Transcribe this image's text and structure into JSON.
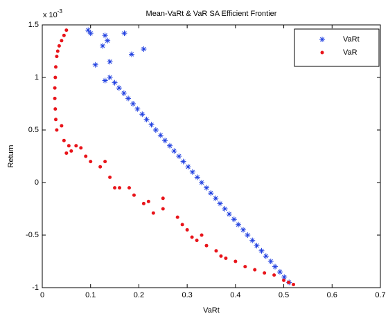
{
  "chart_data": {
    "type": "scatter",
    "title": "Mean-VaRt & VaR SA Efficient Frontier",
    "x_label": "VaRt",
    "y_label": "Return",
    "y_multiplier": {
      "base": "x 10",
      "exponent": "-3"
    },
    "xlim": [
      0,
      0.7
    ],
    "ylim": [
      -1,
      1.5
    ],
    "xticks": [
      0,
      0.1,
      0.2,
      0.3,
      0.4,
      0.5,
      0.6,
      0.7
    ],
    "yticks": [
      -1,
      -0.5,
      0,
      0.5,
      1,
      1.5
    ],
    "grid": false,
    "legend": "top-right",
    "series": [
      {
        "name": "VaRt",
        "color": "#1f3fe0",
        "marker": "star",
        "x": [
          0.095,
          0.1,
          0.13,
          0.135,
          0.125,
          0.17,
          0.185,
          0.21,
          0.11,
          0.14,
          0.13,
          0.14,
          0.15,
          0.159,
          0.169,
          0.178,
          0.188,
          0.197,
          0.207,
          0.216,
          0.226,
          0.235,
          0.245,
          0.254,
          0.264,
          0.273,
          0.283,
          0.292,
          0.302,
          0.311,
          0.321,
          0.33,
          0.34,
          0.349,
          0.359,
          0.368,
          0.378,
          0.387,
          0.397,
          0.406,
          0.416,
          0.425,
          0.435,
          0.444,
          0.454,
          0.463,
          0.473,
          0.482,
          0.492,
          0.501,
          0.511
        ],
        "values": [
          1.45,
          1.42,
          1.4,
          1.35,
          1.3,
          1.42,
          1.22,
          1.27,
          1.12,
          1.15,
          0.97,
          1.0,
          0.95,
          0.9,
          0.85,
          0.8,
          0.75,
          0.7,
          0.65,
          0.6,
          0.55,
          0.5,
          0.45,
          0.4,
          0.35,
          0.3,
          0.25,
          0.2,
          0.15,
          0.1,
          0.05,
          0,
          -0.05,
          -0.1,
          -0.15,
          -0.2,
          -0.25,
          -0.3,
          -0.35,
          -0.4,
          -0.45,
          -0.5,
          -0.55,
          -0.6,
          -0.65,
          -0.7,
          -0.75,
          -0.8,
          -0.85,
          -0.9,
          -0.95
        ]
      },
      {
        "name": "VaR",
        "color": "#e8141a",
        "marker": "dot",
        "x": [
          0.05,
          0.045,
          0.04,
          0.035,
          0.032,
          0.03,
          0.028,
          0.027,
          0.026,
          0.026,
          0.027,
          0.028,
          0.03,
          0.04,
          0.045,
          0.055,
          0.07,
          0.08,
          0.05,
          0.06,
          0.09,
          0.1,
          0.12,
          0.13,
          0.14,
          0.15,
          0.16,
          0.18,
          0.19,
          0.21,
          0.22,
          0.23,
          0.25,
          0.25,
          0.28,
          0.29,
          0.3,
          0.31,
          0.32,
          0.33,
          0.34,
          0.36,
          0.37,
          0.38,
          0.4,
          0.42,
          0.44,
          0.46,
          0.48,
          0.5,
          0.51,
          0.52
        ],
        "values": [
          1.45,
          1.4,
          1.35,
          1.3,
          1.25,
          1.2,
          1.1,
          1.0,
          0.9,
          0.8,
          0.7,
          0.6,
          0.5,
          0.54,
          0.4,
          0.35,
          0.35,
          0.33,
          0.28,
          0.3,
          0.25,
          0.2,
          0.15,
          0.2,
          0.05,
          -0.05,
          -0.05,
          -0.05,
          -0.12,
          -0.2,
          -0.18,
          -0.29,
          -0.15,
          -0.25,
          -0.33,
          -0.4,
          -0.45,
          -0.52,
          -0.55,
          -0.5,
          -0.6,
          -0.65,
          -0.7,
          -0.72,
          -0.75,
          -0.8,
          -0.83,
          -0.86,
          -0.88,
          -0.93,
          -0.95,
          -0.97
        ]
      }
    ]
  }
}
